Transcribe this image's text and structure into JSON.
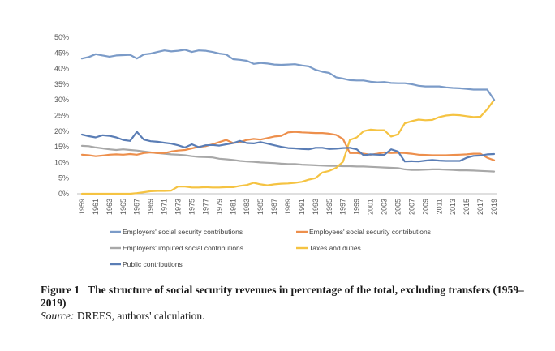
{
  "chart_data": {
    "type": "line",
    "y_ticks": [
      "0%",
      "5%",
      "10%",
      "15%",
      "20%",
      "25%",
      "30%",
      "35%",
      "40%",
      "45%",
      "50%"
    ],
    "ylim": [
      0,
      50
    ],
    "x": [
      1959,
      1960,
      1961,
      1962,
      1963,
      1964,
      1965,
      1966,
      1967,
      1968,
      1969,
      1970,
      1971,
      1972,
      1973,
      1974,
      1975,
      1976,
      1977,
      1978,
      1979,
      1980,
      1981,
      1982,
      1983,
      1984,
      1985,
      1986,
      1987,
      1988,
      1989,
      1990,
      1991,
      1992,
      1993,
      1994,
      1995,
      1996,
      1997,
      1998,
      1999,
      2000,
      2001,
      2002,
      2003,
      2004,
      2005,
      2006,
      2007,
      2008,
      2009,
      2010,
      2011,
      2012,
      2013,
      2014,
      2015,
      2016,
      2017,
      2018,
      2019
    ],
    "x_tick_labels": [
      "1959",
      "1961",
      "1963",
      "1965",
      "1967",
      "1969",
      "1971",
      "1973",
      "1975",
      "1977",
      "1979",
      "1981",
      "1983",
      "1985",
      "1987",
      "1989",
      "1991",
      "1993",
      "1995",
      "1997",
      "1999",
      "2001",
      "2003",
      "2005",
      "2007",
      "2009",
      "2011",
      "2013",
      "2015",
      "2017",
      "2019"
    ],
    "series": [
      {
        "name": "Employers' social security contributions",
        "color": "#7b9bc8",
        "values": [
          43.2,
          43.7,
          44.6,
          44.2,
          43.8,
          44.2,
          44.3,
          44.4,
          43.2,
          44.5,
          44.8,
          45.3,
          45.8,
          45.5,
          45.7,
          46.0,
          45.3,
          45.8,
          45.7,
          45.3,
          44.8,
          44.5,
          43.0,
          42.8,
          42.5,
          41.5,
          41.8,
          41.6,
          41.3,
          41.2,
          41.3,
          41.4,
          41.0,
          40.7,
          39.6,
          39.0,
          38.6,
          37.2,
          36.8,
          36.3,
          36.2,
          36.2,
          35.8,
          35.6,
          35.7,
          35.4,
          35.3,
          35.3,
          35.0,
          34.5,
          34.3,
          34.3,
          34.3,
          34.0,
          33.8,
          33.7,
          33.5,
          33.3,
          33.3,
          33.3,
          30.0
        ]
      },
      {
        "name": "Employees' social security contributions",
        "color": "#ed8f4c",
        "values": [
          12.5,
          12.3,
          12.0,
          12.2,
          12.5,
          12.6,
          12.5,
          12.7,
          12.5,
          13.0,
          13.2,
          13.0,
          13.0,
          13.5,
          13.8,
          14.0,
          14.5,
          15.0,
          15.2,
          15.8,
          16.5,
          17.2,
          16.2,
          16.5,
          17.2,
          17.5,
          17.3,
          17.8,
          18.3,
          18.5,
          19.6,
          19.8,
          19.6,
          19.5,
          19.4,
          19.4,
          19.2,
          18.8,
          17.5,
          13.0,
          13.0,
          12.8,
          12.5,
          12.8,
          13.2,
          13.0,
          13.1,
          13.0,
          12.8,
          12.5,
          12.4,
          12.3,
          12.3,
          12.3,
          12.4,
          12.5,
          12.6,
          12.8,
          12.8,
          11.5,
          10.7
        ]
      },
      {
        "name": "Employers' imputed social contributions",
        "color": "#a8a8a8",
        "values": [
          15.3,
          15.2,
          14.8,
          14.5,
          14.2,
          14.0,
          14.2,
          14.0,
          13.8,
          13.5,
          13.2,
          13.0,
          12.8,
          12.6,
          12.5,
          12.3,
          12.0,
          11.8,
          11.7,
          11.6,
          11.2,
          11.0,
          10.8,
          10.5,
          10.3,
          10.2,
          10.0,
          9.9,
          9.8,
          9.6,
          9.5,
          9.5,
          9.3,
          9.2,
          9.1,
          9.0,
          8.9,
          8.9,
          8.8,
          8.8,
          8.7,
          8.7,
          8.6,
          8.5,
          8.4,
          8.3,
          8.2,
          7.8,
          7.6,
          7.6,
          7.7,
          7.8,
          7.8,
          7.7,
          7.6,
          7.5,
          7.5,
          7.4,
          7.3,
          7.2,
          7.1
        ]
      },
      {
        "name": "Taxes and duties",
        "color": "#f5c342",
        "values": [
          0.0,
          0.0,
          0.0,
          0.0,
          0.0,
          0.0,
          0.0,
          0.0,
          0.2,
          0.5,
          0.8,
          0.9,
          0.9,
          1.0,
          2.3,
          2.3,
          2.0,
          2.0,
          2.1,
          2.0,
          2.0,
          2.1,
          2.1,
          2.5,
          2.8,
          3.5,
          3.0,
          2.7,
          3.0,
          3.2,
          3.3,
          3.5,
          3.8,
          4.5,
          5.0,
          6.8,
          7.3,
          8.3,
          10.2,
          17.2,
          18.0,
          20.0,
          20.5,
          20.3,
          20.3,
          18.3,
          19.0,
          22.5,
          23.2,
          23.7,
          23.5,
          23.6,
          24.5,
          25.0,
          25.2,
          25.1,
          24.8,
          24.5,
          24.6,
          27.0,
          30.0
        ]
      },
      {
        "name": "Public contributions",
        "color": "#5a7db5",
        "values": [
          18.9,
          18.4,
          18.0,
          18.7,
          18.5,
          18.0,
          17.2,
          16.9,
          19.8,
          17.3,
          16.8,
          16.6,
          16.3,
          16.0,
          15.5,
          14.8,
          15.8,
          14.9,
          15.5,
          15.6,
          15.4,
          15.8,
          16.2,
          16.9,
          16.2,
          16.1,
          16.5,
          16.0,
          15.5,
          15.0,
          14.6,
          14.5,
          14.3,
          14.2,
          14.7,
          14.7,
          14.3,
          14.4,
          14.6,
          14.7,
          14.2,
          12.3,
          12.6,
          12.5,
          12.4,
          14.2,
          13.5,
          10.3,
          10.4,
          10.3,
          10.6,
          10.8,
          10.6,
          10.5,
          10.5,
          10.5,
          11.5,
          12.1,
          12.2,
          12.6,
          12.7
        ]
      }
    ]
  },
  "legend": [
    {
      "label": "Employers' social security contributions",
      "color": "#7b9bc8"
    },
    {
      "label": "Employees' social security contributions",
      "color": "#ed8f4c"
    },
    {
      "label": "Employers' imputed social contributions",
      "color": "#a8a8a8"
    },
    {
      "label": "Taxes and duties",
      "color": "#f5c342"
    },
    {
      "label": "Public contributions",
      "color": "#5a7db5"
    }
  ],
  "caption": {
    "figure_label": "Figure 1",
    "title": "The structure of social security revenues in percentage of the total, excluding transfers (1959–2019)",
    "source_label": "Source:",
    "source_text": " DREES, authors' calculation."
  }
}
